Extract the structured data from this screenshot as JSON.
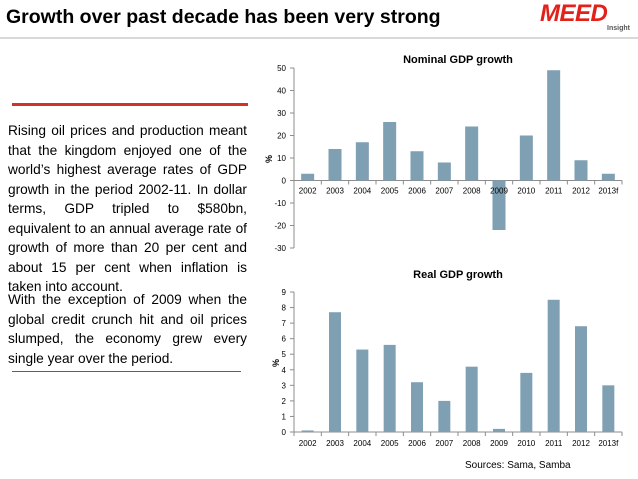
{
  "slide": {
    "title": "Growth over past decade has been very strong",
    "logo_text": "MEED",
    "logo_sub": "Insight",
    "paragraph1": "Rising oil prices and production meant that the kingdom enjoyed one of the world’s highest average rates of GDP growth in the period 2002-11. In dollar terms, GDP tripled to $580bn, equivalent to an annual average rate of growth of more than 20 per cent and about 15 per cent when inflation is taken into account.",
    "paragraph2": "With the exception of 2009 when the global credit crunch hit and oil prices slumped, the economy grew every single year over the period.",
    "sources": "Sources: Sama, Samba"
  },
  "colors": {
    "bar": "#7f9fb3",
    "accent": "#d3322a"
  },
  "chart_data": [
    {
      "type": "bar",
      "title": "Nominal GDP growth",
      "ylabel": "%",
      "xlabel": "",
      "categories": [
        "2002",
        "2003",
        "2004",
        "2005",
        "2006",
        "2007",
        "2008",
        "2009",
        "2010",
        "2011",
        "2012",
        "2013f"
      ],
      "values": [
        3,
        14,
        17,
        26,
        13,
        8,
        24,
        -22,
        20,
        49,
        9,
        3
      ],
      "ylim": [
        -30,
        50
      ],
      "yticks": [
        50,
        40,
        30,
        20,
        10,
        0,
        -10,
        -20,
        -30
      ],
      "grid": false
    },
    {
      "type": "bar",
      "title": "Real GDP growth",
      "ylabel": "%",
      "xlabel": "",
      "categories": [
        "2002",
        "2003",
        "2004",
        "2005",
        "2006",
        "2007",
        "2008",
        "2009",
        "2010",
        "2011",
        "2012",
        "2013f"
      ],
      "values": [
        0.1,
        7.7,
        5.3,
        5.6,
        3.2,
        2.0,
        4.2,
        0.2,
        3.8,
        8.5,
        6.8,
        3.0
      ],
      "ylim": [
        0,
        9
      ],
      "yticks": [
        9,
        8,
        7,
        6,
        5,
        4,
        3,
        2,
        1,
        0
      ],
      "grid": false
    }
  ]
}
